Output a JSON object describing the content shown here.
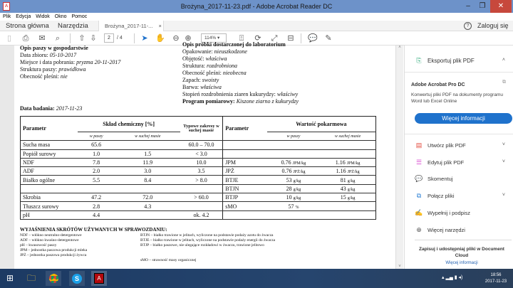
{
  "window": {
    "title": "Brożyna_2017-11-23.pdf - Adobe Acrobat Reader DC",
    "minimize": "–",
    "maximize": "❐",
    "close": "✕"
  },
  "menu": [
    "Plik",
    "Edycja",
    "Widok",
    "Okno",
    "Pomoc"
  ],
  "tabs": {
    "home": "Strona główna",
    "tools": "Narzędzia",
    "document": "Brożyna_2017-11-...",
    "close": "×",
    "help": "?",
    "login": "Zaloguj się"
  },
  "toolbar": {
    "page_current": "2",
    "page_total": "/ 4",
    "zoom": "114%"
  },
  "document": {
    "left_header": "Opis paszy w gospodarstwie",
    "left_fields": [
      {
        "label": "Data zbioru: ",
        "value": "05-10-2017"
      },
      {
        "label": "Miejsce i data pobrania: ",
        "value": "pryzma 20-11-2017"
      },
      {
        "label": "Struktura paszy: ",
        "value": "prawidłowa"
      },
      {
        "label": "Obecność pleśni: ",
        "value": "nie"
      }
    ],
    "right_header": "Opis próbki dostarczonej do laboratorium",
    "right_fields": [
      {
        "label": "Opakowanie: ",
        "value": "nieuszkodzone"
      },
      {
        "label": "Objętość: ",
        "value": "właściwa"
      },
      {
        "label": "Struktura: ",
        "value": "rozdrobniona"
      },
      {
        "label": "Obecność pleśni: ",
        "value": "nieobecna"
      },
      {
        "label": "Zapach: ",
        "value": "swoisty"
      },
      {
        "label": "Barwa: ",
        "value": "właściwa"
      },
      {
        "label": "Stopień rozdrobnienia ziaren kukurydzy: ",
        "value": "właściwy"
      }
    ],
    "test_date_label": "Data badania: ",
    "test_date": "2017-11-23",
    "program_label": "Program pomiarowy: ",
    "program": "Kiszone ziarno z kukurydzy",
    "table": {
      "param": "Parametr",
      "chem": "Skład chemiczny [%]",
      "in_feed": "w paszy",
      "in_dm": "w suchej masie",
      "typical": "Typowe zakresy w suchej masie",
      "nutr": "Wartość pokarmowa",
      "rows": [
        {
          "p": "Sucha masa",
          "f": "65.6",
          "d": "",
          "t": "60.0 – 70.0",
          "p2": "",
          "v1": "",
          "u1": "",
          "v2": "",
          "u2": ""
        },
        {
          "p": "Popiół surowy",
          "f": "1.0",
          "d": "1.5",
          "t": "< 3.0",
          "p2": "",
          "v1": "",
          "u1": "",
          "v2": "",
          "u2": ""
        },
        {
          "p": "NDF",
          "f": "7.8",
          "d": "11.9",
          "t": "10.0",
          "p2": "JPM",
          "v1": "0.76",
          "u1": "JPM/kg",
          "v2": "1.16",
          "u2": "JPM/kg"
        },
        {
          "p": "ADF",
          "f": "2.0",
          "d": "3.0",
          "t": "3.5",
          "p2": "JPŻ",
          "v1": "0.76",
          "u1": "JPŻ/kg",
          "v2": "1.16",
          "u2": "JPŻ/kg"
        },
        {
          "p": "Białko ogólne",
          "f": "5.5",
          "d": "8.4",
          "t": "> 8.0",
          "p2": "BTJE",
          "v1": "53",
          "u1": "g/kg",
          "v2": "81",
          "u2": "g/kg"
        },
        {
          "p": "",
          "f": "",
          "d": "",
          "t": "",
          "p2": "BTJN",
          "v1": "28",
          "u1": "g/kg",
          "v2": "43",
          "u2": "g/kg"
        },
        {
          "p": "Skrobia",
          "f": "47.2",
          "d": "72.0",
          "t": "> 60.0",
          "p2": "BTJP",
          "v1": "10",
          "u1": "g/kg",
          "v2": "15",
          "u2": "g/kg"
        },
        {
          "p": "Tłuszcz surowy",
          "f": "2.8",
          "d": "4.3",
          "t": "",
          "p2": "sMO",
          "v1": "57",
          "u1": "%",
          "v2": "",
          "u2": ""
        },
        {
          "p": "pH",
          "f": "4.4",
          "d": "",
          "t": "ok. 4.2",
          "p2": "",
          "v1": "",
          "u1": "",
          "v2": "",
          "u2": ""
        }
      ]
    },
    "legend_title": "WYJAŚNIENIA SKRÓTÓW UŻYWANYCH W SPRAWOZDANIU:",
    "legend_left": [
      "NDF – włókno neutralno-detergentowe",
      "ADF – włókno kwaśno-detergentowe",
      "pH – kwasowość paszy",
      "JPM – jednostka paszowa produkcji mleka",
      "JPŻ – jednostka paszowa produkcji żywca"
    ],
    "legend_right": [
      "BTJN – białko trawione w jelitach, wyliczone na podstawie podaży azotu do żwacza",
      "BTJE – białko trawione w jelitach, wyliczone na podstawie podaży energii do żwacza",
      "BTJP – białko paszowe, nie ulegające rozkładowi w żwaczu, trawione jelitowo"
    ],
    "legend_smo": "sMO – strawność masy organicznej"
  },
  "panel": {
    "export": "Eksportuj plik PDF",
    "promo_title": "Adobe Acrobat Pro DC",
    "promo_text": "Konwertuj pliki PDF na dokumenty programu Word lub Excel Online",
    "more_button": "Więcej informacji",
    "tools": [
      "Utwórz plik PDF",
      "Edytuj plik PDF",
      "Skomentuj",
      "Połącz pliki",
      "Wypełnij i podpisz",
      "Więcej narzędzi"
    ],
    "cloud_text": "Zapisuj i udostępniaj pliki w Document Cloud",
    "cloud_link": "Więcej informacji"
  },
  "taskbar": {
    "time": "18:56",
    "date": "2017-11-23"
  }
}
